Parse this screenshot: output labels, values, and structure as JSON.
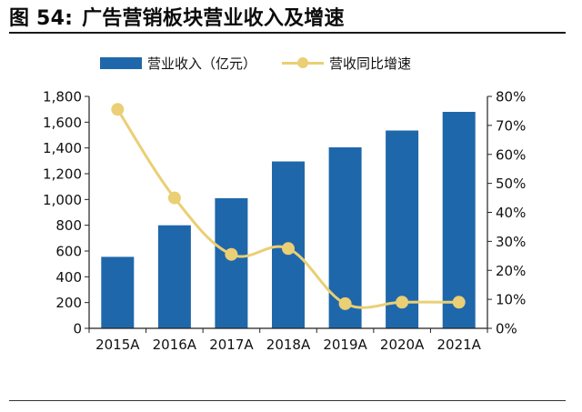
{
  "header": {
    "title_prefix": "图 54:",
    "title_text": "广告营销板块营业收入及增速"
  },
  "colors": {
    "bar": "#1f67ab",
    "line": "#eacf75",
    "axis": "#222222"
  },
  "chart_data": {
    "type": "bar",
    "categories": [
      "2015A",
      "2016A",
      "2017A",
      "2018A",
      "2019A",
      "2020A",
      "2021A"
    ],
    "series": [
      {
        "name": "营业收入（亿元）",
        "type": "bar",
        "axis": "left",
        "values": [
          555,
          800,
          1010,
          1295,
          1405,
          1535,
          1680
        ]
      },
      {
        "name": "营收同比增速",
        "type": "line",
        "axis": "right",
        "values": [
          0.755,
          0.45,
          0.255,
          0.275,
          0.085,
          0.09,
          0.09
        ]
      }
    ],
    "left_axis": {
      "ylim": [
        0,
        1800
      ],
      "ticks": [
        0,
        200,
        400,
        600,
        800,
        1000,
        1200,
        1400,
        1600,
        1800
      ],
      "tick_labels": [
        "0",
        "200",
        "400",
        "600",
        "800",
        "1,000",
        "1,200",
        "1,400",
        "1,600",
        "1,800"
      ]
    },
    "right_axis": {
      "ylim": [
        0,
        0.8
      ],
      "ticks": [
        0,
        0.1,
        0.2,
        0.3,
        0.4,
        0.5,
        0.6,
        0.7,
        0.8
      ],
      "tick_labels": [
        "0%",
        "10%",
        "20%",
        "30%",
        "40%",
        "50%",
        "60%",
        "70%",
        "80%"
      ]
    },
    "grid": false,
    "legend_position": "top"
  }
}
